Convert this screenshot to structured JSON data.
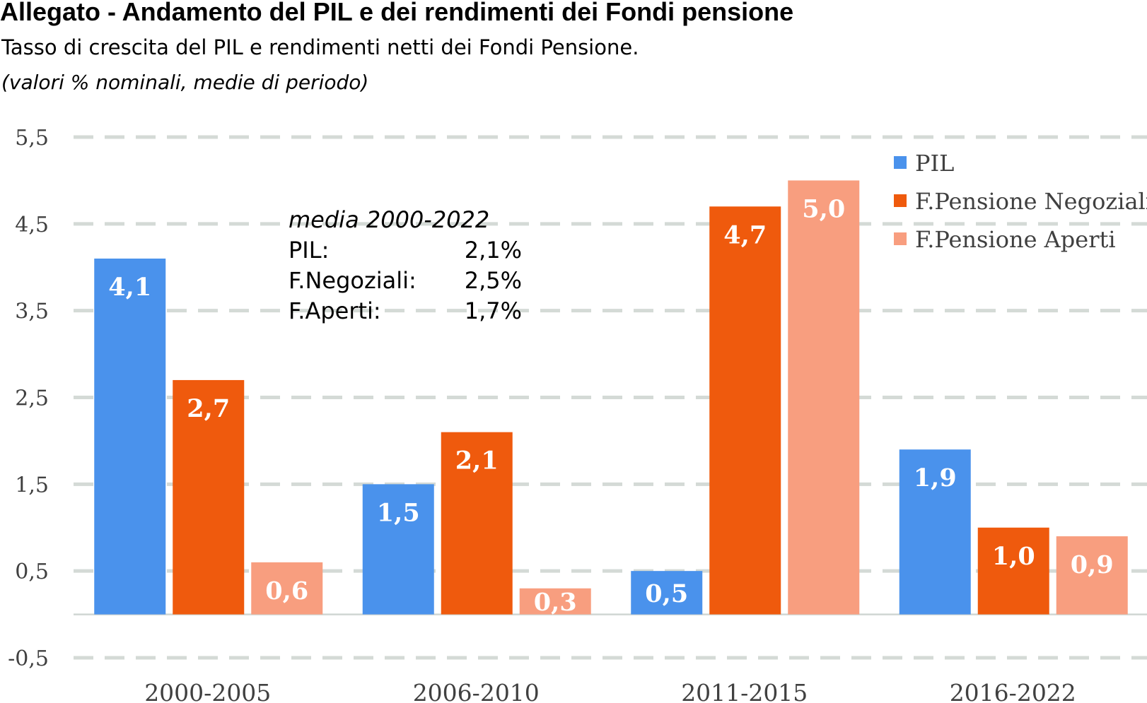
{
  "header": {
    "title": "Allegato - Andamento del PIL e dei rendimenti dei Fondi pensione",
    "subtitle": "Tasso di crescita del PIL e rendimenti netti dei Fondi Pensione.",
    "note": "(valori % nominali, medie di periodo)"
  },
  "annotation": {
    "heading": "media 2000-2022",
    "rows": [
      {
        "label": "PIL:",
        "value": "2,1%"
      },
      {
        "label": "F.Negoziali:",
        "value": "2,5%"
      },
      {
        "label": "F.Aperti:",
        "value": "1,7%"
      }
    ]
  },
  "chart_data": {
    "type": "bar",
    "categories": [
      "2000-2005",
      "2006-2010",
      "2011-2015",
      "2016-2022"
    ],
    "series": [
      {
        "name": "PIL",
        "color": "#4a92ec",
        "values": [
          4.1,
          1.5,
          0.5,
          1.9
        ],
        "labels": [
          "4,1",
          "1,5",
          "0,5",
          "1,9"
        ]
      },
      {
        "name": "F.Pensione Negoziali",
        "color": "#ef5a0d",
        "values": [
          2.7,
          2.1,
          4.7,
          1.0
        ],
        "labels": [
          "2,7",
          "2,1",
          "4,7",
          "1,0"
        ]
      },
      {
        "name": "F.Pensione Aperti",
        "color": "#f89e7f",
        "values": [
          0.6,
          0.3,
          5.0,
          0.9
        ],
        "labels": [
          "0,6",
          "0,3",
          "5,0",
          "0,9"
        ]
      }
    ],
    "yticks": [
      -0.5,
      0.5,
      1.5,
      2.5,
      3.5,
      4.5,
      5.5
    ],
    "ytick_labels": [
      "-0,5",
      "0,5",
      "1,5",
      "2,5",
      "3,5",
      "4,5",
      "5,5"
    ],
    "ylim": [
      -0.5,
      5.5
    ],
    "grid": true,
    "grid_style": "dashed",
    "legend_position": "top-right"
  }
}
